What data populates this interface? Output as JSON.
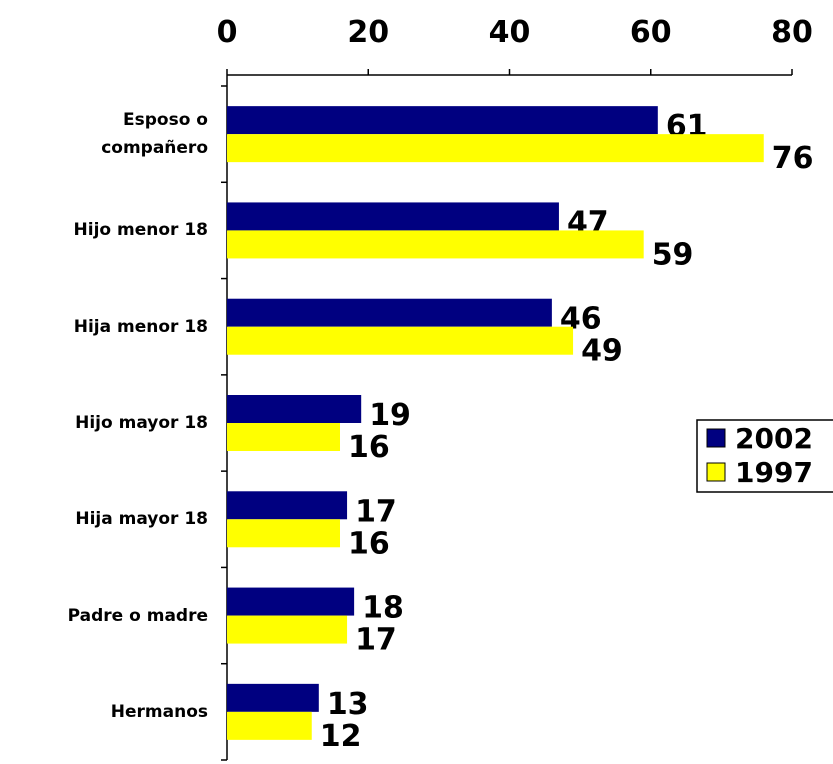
{
  "chart_data": {
    "type": "bar",
    "orientation": "horizontal",
    "categories": [
      "Esposo o\ncompañero",
      "Hijo menor 18",
      "Hija menor 18",
      "Hijo mayor 18",
      "Hija mayor 18",
      "Padre o madre",
      "Hermanos"
    ],
    "series": [
      {
        "name": "2002",
        "color": "#000080",
        "values": [
          61,
          47,
          46,
          19,
          17,
          18,
          13
        ]
      },
      {
        "name": "1997",
        "color": "#ffff00",
        "values": [
          76,
          59,
          49,
          16,
          16,
          17,
          12
        ]
      }
    ],
    "xlim": [
      0,
      80
    ],
    "xticks": [
      0,
      20,
      40,
      60,
      80
    ],
    "legend": "right"
  }
}
